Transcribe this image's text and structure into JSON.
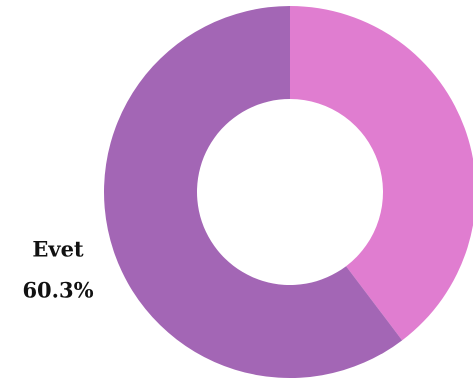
{
  "chart_data": {
    "type": "donut",
    "categories": [
      null,
      "Evet"
    ],
    "values": [
      39.7,
      60.3
    ],
    "value_labels": [
      null,
      "60.3%"
    ],
    "colors": [
      "#e07dd0",
      "#a366b5"
    ]
  }
}
